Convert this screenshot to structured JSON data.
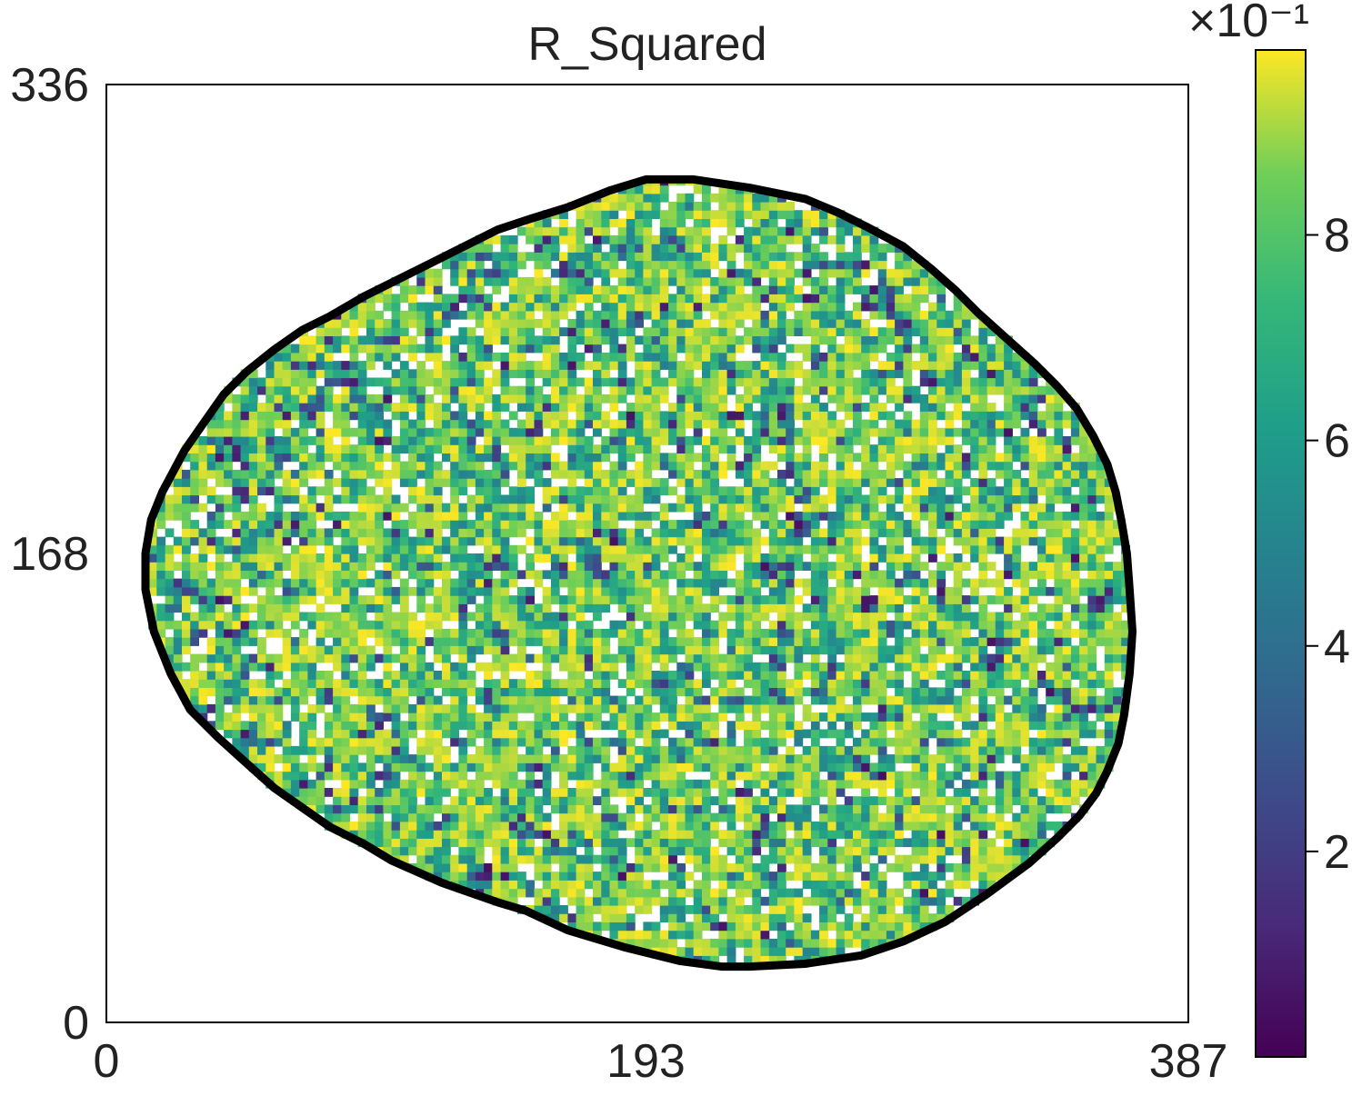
{
  "chart_data": {
    "type": "heatmap",
    "title": "R_Squared",
    "xlabel": "",
    "ylabel": "",
    "x_ticks": [
      "0",
      "193",
      "387"
    ],
    "y_ticks": [
      "0",
      "168",
      "336"
    ],
    "xlim": [
      0,
      387
    ],
    "ylim": [
      0,
      336
    ],
    "colorbar": {
      "colormap": "viridis",
      "range": [
        0.0,
        0.98
      ],
      "tick_values": [
        0.2,
        0.4,
        0.6,
        0.8
      ],
      "tick_labels": [
        "2",
        "4",
        "6",
        "8"
      ],
      "multiplier_label": "×10⁻¹"
    },
    "region_outline": {
      "color": "#000000",
      "points": [
        [
          193,
          302
        ],
        [
          210,
          302
        ],
        [
          230,
          299
        ],
        [
          250,
          295
        ],
        [
          262,
          290
        ],
        [
          272,
          285
        ],
        [
          285,
          278
        ],
        [
          295,
          270
        ],
        [
          304,
          262
        ],
        [
          312,
          254
        ],
        [
          322,
          245
        ],
        [
          332,
          236
        ],
        [
          340,
          228
        ],
        [
          347,
          220
        ],
        [
          353,
          210
        ],
        [
          358,
          200
        ],
        [
          361,
          190
        ],
        [
          363,
          180
        ],
        [
          365,
          168
        ],
        [
          366,
          155
        ],
        [
          367,
          140
        ],
        [
          366,
          125
        ],
        [
          364,
          110
        ],
        [
          362,
          100
        ],
        [
          358,
          90
        ],
        [
          354,
          82
        ],
        [
          348,
          74
        ],
        [
          340,
          66
        ],
        [
          330,
          57
        ],
        [
          315,
          46
        ],
        [
          300,
          36
        ],
        [
          285,
          29
        ],
        [
          270,
          24
        ],
        [
          250,
          21
        ],
        [
          230,
          20
        ],
        [
          220,
          20
        ],
        [
          205,
          22
        ],
        [
          185,
          27
        ],
        [
          165,
          33
        ],
        [
          150,
          40
        ],
        [
          140,
          43
        ],
        [
          120,
          50
        ],
        [
          102,
          58
        ],
        [
          92,
          64
        ],
        [
          80,
          70
        ],
        [
          70,
          77
        ],
        [
          60,
          84
        ],
        [
          50,
          93
        ],
        [
          40,
          102
        ],
        [
          30,
          112
        ],
        [
          23,
          125
        ],
        [
          17,
          140
        ],
        [
          14,
          155
        ],
        [
          14,
          168
        ],
        [
          16,
          180
        ],
        [
          20,
          190
        ],
        [
          28,
          205
        ],
        [
          35,
          215
        ],
        [
          42,
          225
        ],
        [
          50,
          233
        ],
        [
          60,
          241
        ],
        [
          70,
          248
        ],
        [
          80,
          253
        ],
        [
          92,
          260
        ],
        [
          104,
          266
        ],
        [
          116,
          272
        ],
        [
          128,
          278
        ],
        [
          140,
          284
        ],
        [
          152,
          288
        ],
        [
          165,
          292
        ],
        [
          180,
          298
        ],
        [
          193,
          302
        ]
      ]
    },
    "value_distribution": {
      "dominant_range": [
        0.85,
        0.98
      ],
      "secondary_range": [
        0.5,
        0.85
      ],
      "minor_range": [
        0.05,
        0.5
      ],
      "masked_fraction": 0.18
    }
  }
}
